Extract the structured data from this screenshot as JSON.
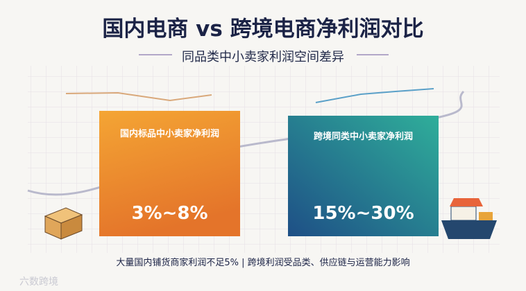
{
  "header": {
    "title": "国内电商 vs 跨境电商净利润对比",
    "subtitle": "同品类中小卖家利润空间差异"
  },
  "cards": [
    {
      "label": "国内标品中小卖家净利润",
      "value": "3%~8%"
    },
    {
      "label": "跨境同类中小卖家净利润",
      "value": "15%~30%"
    }
  ],
  "footnote": "大量国内铺货商家利润不足5% | 跨境利润受品类、供应链与运营能力影响",
  "watermark": "六数跨境"
}
